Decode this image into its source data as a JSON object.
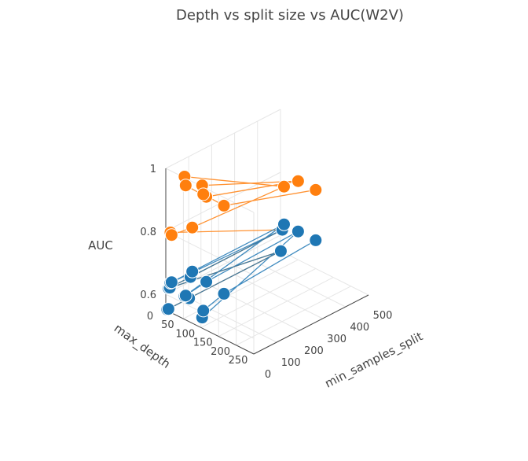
{
  "chart_data": {
    "type": "scatter3d",
    "title": "Depth vs split size vs AUC(W2V)",
    "axes": {
      "x": {
        "label": "min_samples_split",
        "range": [
          0,
          500
        ],
        "ticks": [
          0,
          100,
          200,
          300,
          400,
          500
        ],
        "tick_labels": [
          "0",
          "100",
          "200",
          "300",
          "400",
          "500"
        ]
      },
      "y": {
        "label": "max_depth",
        "range": [
          0,
          250
        ],
        "ticks": [
          0,
          50,
          100,
          150,
          200,
          250
        ],
        "tick_labels": [
          "0",
          "50",
          "100",
          "150",
          "200",
          "250"
        ]
      },
      "z": {
        "label": "AUC",
        "range": [
          0.55,
          1.0
        ],
        "ticks": [
          0.6,
          0.8,
          1
        ],
        "tick_labels": [
          "0.6",
          "0.8",
          "1"
        ]
      }
    },
    "grid": true,
    "legend": "none",
    "series": [
      {
        "color": "#ff7f0e",
        "points": [
          {
            "depth": 1,
            "split": 5,
            "auc": 0.55
          },
          {
            "depth": 1,
            "split": 10,
            "auc": 0.55
          },
          {
            "depth": 1,
            "split": 100,
            "auc": 0.55
          },
          {
            "depth": 1,
            "split": 500,
            "auc": 0.55
          },
          {
            "depth": 5,
            "split": 5,
            "auc": 0.62
          },
          {
            "depth": 5,
            "split": 10,
            "auc": 0.62
          },
          {
            "depth": 5,
            "split": 100,
            "auc": 0.62
          },
          {
            "depth": 5,
            "split": 500,
            "auc": 0.62
          },
          {
            "depth": 10,
            "split": 5,
            "auc": 0.8
          },
          {
            "depth": 10,
            "split": 10,
            "auc": 0.79
          },
          {
            "depth": 10,
            "split": 100,
            "auc": 0.78
          },
          {
            "depth": 10,
            "split": 500,
            "auc": 0.76
          },
          {
            "depth": 50,
            "split": 5,
            "auc": 1.0
          },
          {
            "depth": 50,
            "split": 10,
            "auc": 0.97
          },
          {
            "depth": 50,
            "split": 100,
            "auc": 0.9
          },
          {
            "depth": 50,
            "split": 500,
            "auc": 0.8
          },
          {
            "depth": 100,
            "split": 5,
            "auc": 1.0
          },
          {
            "depth": 100,
            "split": 10,
            "auc": 0.97
          },
          {
            "depth": 100,
            "split": 100,
            "auc": 0.9
          },
          {
            "depth": 100,
            "split": 500,
            "auc": 0.8
          }
        ]
      },
      {
        "color": "#1f77b4",
        "points": [
          {
            "depth": 1,
            "split": 5,
            "auc": 0.55
          },
          {
            "depth": 1,
            "split": 10,
            "auc": 0.55
          },
          {
            "depth": 1,
            "split": 100,
            "auc": 0.55
          },
          {
            "depth": 1,
            "split": 500,
            "auc": 0.55
          },
          {
            "depth": 5,
            "split": 5,
            "auc": 0.62
          },
          {
            "depth": 5,
            "split": 10,
            "auc": 0.62
          },
          {
            "depth": 5,
            "split": 100,
            "auc": 0.62
          },
          {
            "depth": 5,
            "split": 500,
            "auc": 0.62
          },
          {
            "depth": 10,
            "split": 5,
            "auc": 0.64
          },
          {
            "depth": 10,
            "split": 10,
            "auc": 0.64
          },
          {
            "depth": 10,
            "split": 100,
            "auc": 0.64
          },
          {
            "depth": 10,
            "split": 500,
            "auc": 0.64
          },
          {
            "depth": 50,
            "split": 5,
            "auc": 0.62
          },
          {
            "depth": 50,
            "split": 10,
            "auc": 0.62
          },
          {
            "depth": 50,
            "split": 100,
            "auc": 0.63
          },
          {
            "depth": 50,
            "split": 500,
            "auc": 0.64
          },
          {
            "depth": 100,
            "split": 5,
            "auc": 0.58
          },
          {
            "depth": 100,
            "split": 10,
            "auc": 0.6
          },
          {
            "depth": 100,
            "split": 100,
            "auc": 0.62
          },
          {
            "depth": 100,
            "split": 500,
            "auc": 0.64
          }
        ]
      }
    ]
  }
}
